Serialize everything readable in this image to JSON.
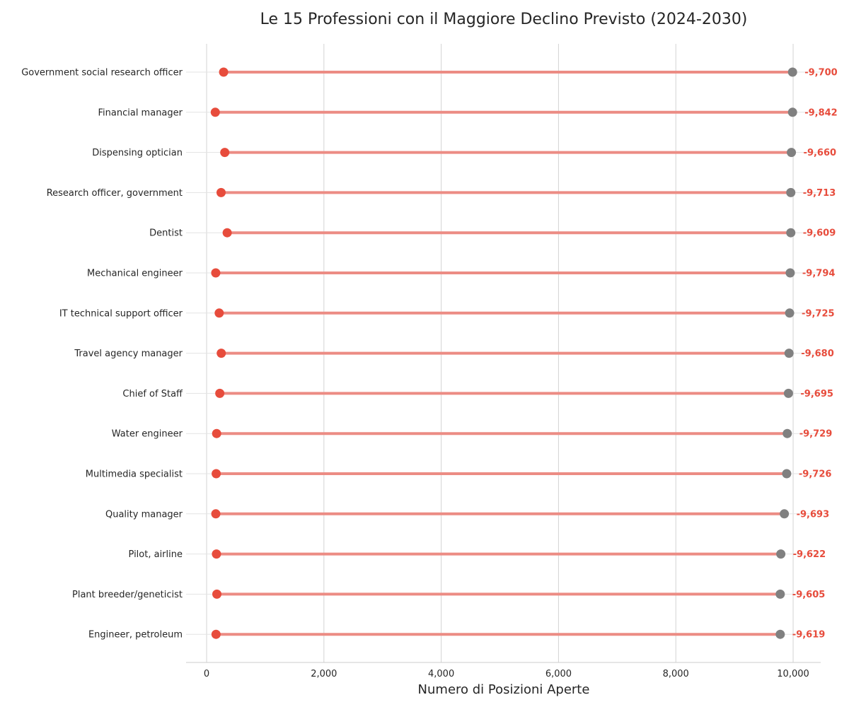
{
  "chart_data": {
    "type": "dumbbell",
    "title": "Le 15 Professioni con il Maggiore Declino Previsto (2024-2030)",
    "xlabel": "Numero di Posizioni Aperte",
    "ylabel": "",
    "xlim": [
      -350,
      10470
    ],
    "xticks": [
      0,
      2000,
      4000,
      6000,
      8000,
      10000
    ],
    "xtick_labels": [
      "0",
      "2,000",
      "4,000",
      "6,000",
      "8,000",
      "10,000"
    ],
    "grid": "vertical",
    "categories": [
      "Government social research officer",
      "Financial manager",
      "Dispensing optician",
      "Research officer, government",
      "Dentist",
      "Mechanical engineer",
      "IT technical support officer",
      "Travel agency manager",
      "Chief of Staff",
      "Water engineer",
      "Multimedia specialist",
      "Quality manager",
      "Pilot, airline",
      "Plant breeder/geneticist",
      "Engineer, petroleum"
    ],
    "start_values": [
      9990,
      9990,
      9970,
      9960,
      9960,
      9950,
      9940,
      9930,
      9920,
      9900,
      9890,
      9850,
      9790,
      9780,
      9780
    ],
    "end_values": [
      290,
      148,
      310,
      247,
      351,
      156,
      215,
      250,
      225,
      171,
      164,
      157,
      168,
      175,
      161
    ],
    "diff_labels": [
      "-9,700",
      "-9,842",
      "-9,660",
      "-9,713",
      "-9,609",
      "-9,794",
      "-9,725",
      "-9,680",
      "-9,695",
      "-9,729",
      "-9,726",
      "-9,693",
      "-9,622",
      "-9,605",
      "-9,619"
    ],
    "colors": {
      "start_marker": "#808080",
      "end_marker": "#e74c3c",
      "connector": "#ec8c84",
      "diff_label": "#e74c3c",
      "grid": "#d3d3d3",
      "axis": "#cccccc"
    }
  }
}
